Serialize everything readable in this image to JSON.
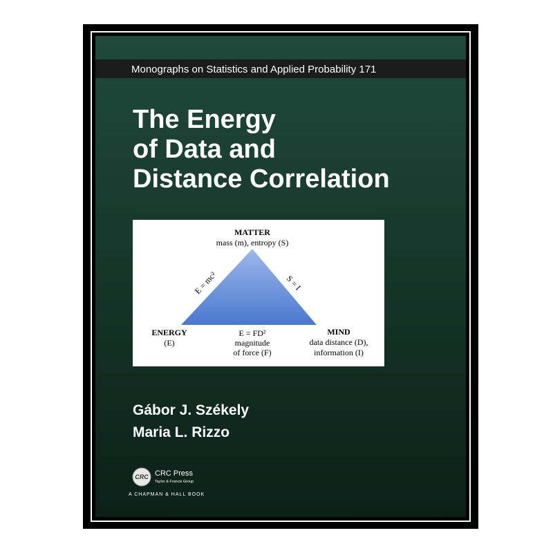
{
  "cover": {
    "series": "Monographs on Statistics and Applied Probability 171",
    "title": [
      "The Energy",
      "of Data and",
      "Distance Correlation"
    ],
    "diagram": {
      "top": {
        "label": "MATTER",
        "detail": "mass (m), entropy (S)"
      },
      "left_edge": "E = mc²",
      "right_edge": "S = I",
      "left": {
        "label": "ENERGY",
        "detail": "(E)"
      },
      "bottom": [
        "E = FD²",
        "magnitude",
        "of force (F)"
      ],
      "right": {
        "label": "MIND",
        "detail": [
          "data distance (D),",
          "information (I)"
        ]
      }
    },
    "authors": [
      "Gábor J. Székely",
      "Maria L. Rizzo"
    ],
    "publisher": {
      "logo": "CRC",
      "name": "CRC Press",
      "group": "Taylor & Francis Group",
      "imprint": "A CHAPMAN & HALL BOOK"
    }
  }
}
